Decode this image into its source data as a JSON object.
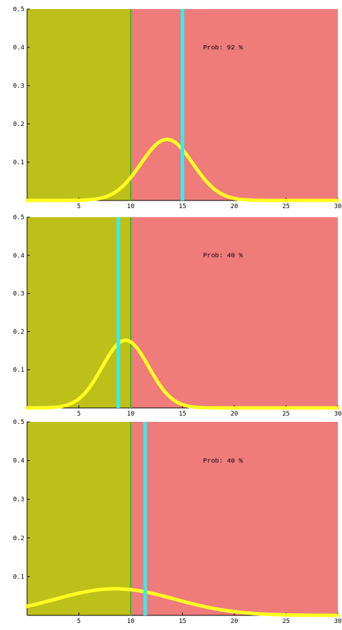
{
  "chart_data": [
    {
      "type": "line",
      "title": "",
      "xlabel": "",
      "ylabel": "",
      "xlim": [
        0,
        30
      ],
      "ylim": [
        0,
        0.5
      ],
      "x_ticks": [
        5,
        10,
        15,
        20,
        25,
        30
      ],
      "y_ticks": [
        0.1,
        0.2,
        0.3,
        0.4,
        0.5
      ],
      "grid": false,
      "regions": [
        {
          "from": 0,
          "to": 10,
          "color": "#bfbf1a"
        },
        {
          "from": 10,
          "to": 30,
          "color": "#ef7b7b"
        }
      ],
      "vlines": [
        {
          "x": 10,
          "color": "#22cc11"
        },
        {
          "x": 15,
          "color": "#33eeee"
        }
      ],
      "curve": {
        "type": "normal",
        "mean": 13.5,
        "sd": 2.5,
        "color": "#ffff22"
      },
      "annotation": {
        "text": "Prob: 92 %",
        "x": 17,
        "y": 0.395
      }
    },
    {
      "type": "line",
      "title": "",
      "xlabel": "",
      "ylabel": "",
      "xlim": [
        0,
        30
      ],
      "ylim": [
        0,
        0.5
      ],
      "x_ticks": [
        5,
        10,
        15,
        20,
        25,
        30
      ],
      "y_ticks": [
        0.1,
        0.2,
        0.3,
        0.4,
        0.5
      ],
      "grid": false,
      "regions": [
        {
          "from": 0,
          "to": 10,
          "color": "#bfbf1a"
        },
        {
          "from": 10,
          "to": 30,
          "color": "#ef7b7b"
        }
      ],
      "vlines": [
        {
          "x": 10,
          "color": "#22cc11"
        },
        {
          "x": 8.8,
          "color": "#33eeee"
        }
      ],
      "curve": {
        "type": "normal",
        "mean": 9.5,
        "sd": 2.25,
        "color": "#ffff22"
      },
      "annotation": {
        "text": "Prob: 40 %",
        "x": 17,
        "y": 0.395
      }
    },
    {
      "type": "line",
      "title": "",
      "xlabel": "",
      "ylabel": "",
      "xlim": [
        0,
        30
      ],
      "ylim": [
        0,
        0.5
      ],
      "x_ticks": [
        5,
        10,
        15,
        20,
        25,
        30
      ],
      "y_ticks": [
        0.1,
        0.2,
        0.3,
        0.4,
        0.5
      ],
      "grid": false,
      "regions": [
        {
          "from": 0,
          "to": 10,
          "color": "#bfbf1a"
        },
        {
          "from": 10,
          "to": 30,
          "color": "#ef7b7b"
        }
      ],
      "vlines": [
        {
          "x": 10,
          "color": "#22cc11"
        },
        {
          "x": 11.4,
          "color": "#33eeee"
        }
      ],
      "curve": {
        "type": "normal",
        "mean": 8.5,
        "sd": 5.8,
        "color": "#ffff22"
      },
      "annotation": {
        "text": "Prob: 40 %",
        "x": 17,
        "y": 0.395
      }
    }
  ]
}
